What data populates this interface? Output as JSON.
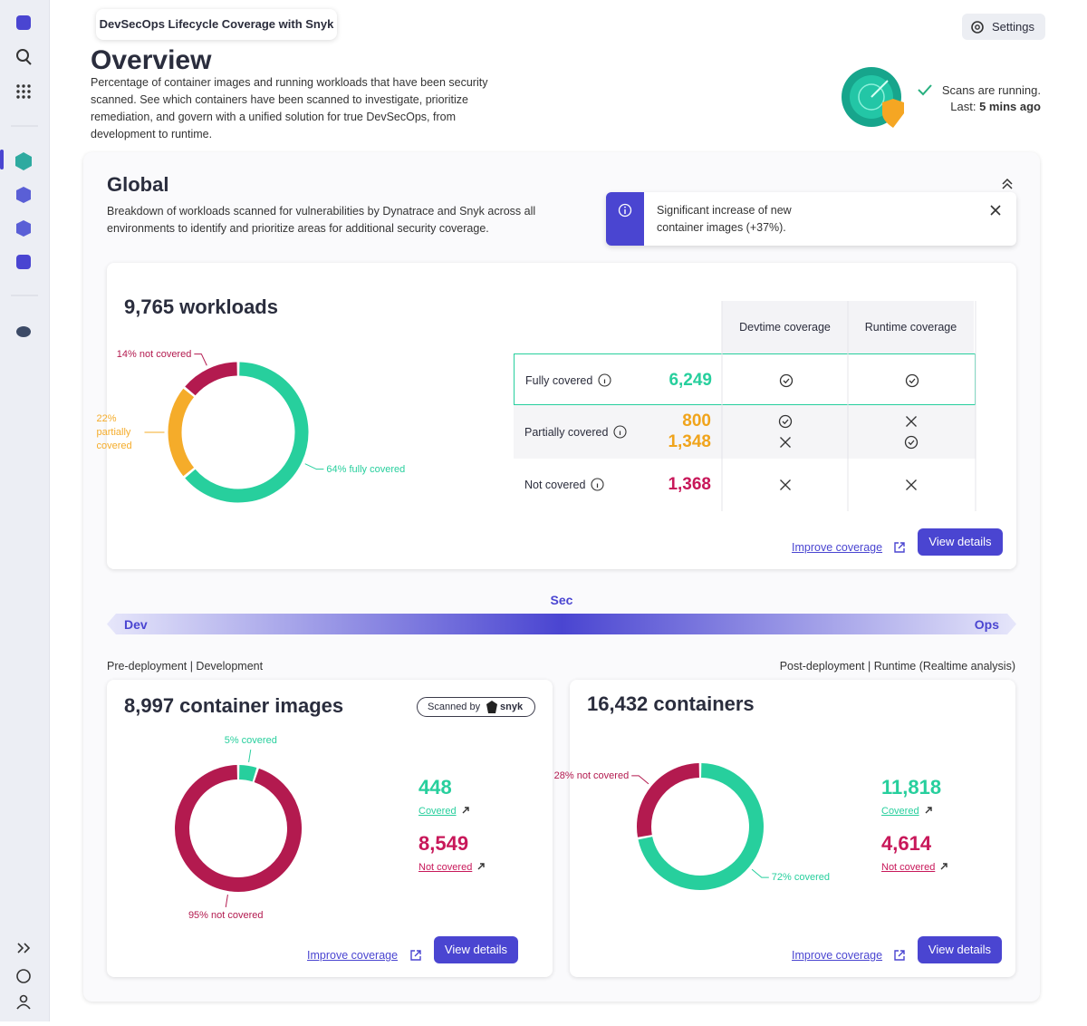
{
  "app_title": "DevSecOps Lifecycle Coverage with Snyk",
  "settings_label": "Settings",
  "header": {
    "title": "Overview",
    "description": "Percentage of container images and running workloads that have been security scanned. See which containers have been scanned to investigate, prioritize remediation, and govern with a unified solution for true DevSecOps, from development to runtime.",
    "status": "Scans are running.",
    "last_label": "Last:",
    "last_value": "5 mins ago"
  },
  "global": {
    "title": "Global",
    "description": "Breakdown of workloads scanned for vulnerabilities by Dynatrace and Snyk across all environments to identify and prioritize areas for additional security coverage.",
    "alert": "Significant increase of new container images (+37%)."
  },
  "workloads": {
    "title": "9,765 workloads",
    "donut": [
      {
        "value": 64,
        "label": "64% fully covered",
        "color": "#27cf9d"
      },
      {
        "value": 22,
        "label": "22% partially covered",
        "color": "#f5ac2a"
      },
      {
        "value": 14,
        "label": "14% not covered",
        "color": "#b31a4f"
      }
    ],
    "table": {
      "columns": [
        "Devtime coverage",
        "Runtime coverage"
      ],
      "rows": [
        {
          "label": "Fully covered",
          "color": "#27cf9d",
          "items": [
            {
              "count": "6,249",
              "devtime": true,
              "runtime": true
            }
          ]
        },
        {
          "label": "Partially covered",
          "color": "#f0a41c",
          "items": [
            {
              "count": "800",
              "devtime": true,
              "runtime": false
            },
            {
              "count": "1,348",
              "devtime": false,
              "runtime": true
            }
          ]
        },
        {
          "label": "Not covered",
          "color": "#c8185a",
          "items": [
            {
              "count": "1,368",
              "devtime": false,
              "runtime": false
            }
          ]
        }
      ]
    },
    "improve_link": "Improve coverage",
    "button": "View details"
  },
  "lifecycle": {
    "center": "Sec",
    "left": "Dev",
    "right": "Ops",
    "pre_label": "Pre-deployment | Development",
    "post_label": "Post-deployment | Runtime (Realtime analysis)"
  },
  "images": {
    "title": "8,997 container images",
    "badge": {
      "prefix": "Scanned by",
      "brand": "snyk"
    },
    "donut": [
      {
        "value": 5,
        "label": "5% covered",
        "color": "#27cf9d"
      },
      {
        "value": 95,
        "label": "95% not covered",
        "color": "#b31a4f"
      }
    ],
    "stats": [
      {
        "value": "448",
        "label": "Covered",
        "color": "#27cf9d"
      },
      {
        "value": "8,549",
        "label": "Not covered",
        "color": "#c8185a"
      }
    ],
    "improve_link": "Improve coverage",
    "button": "View details"
  },
  "containers": {
    "title": "16,432 containers",
    "donut": [
      {
        "value": 72,
        "label": "72% covered",
        "color": "#27cf9d"
      },
      {
        "value": 28,
        "label": "28% not covered",
        "color": "#b31a4f"
      }
    ],
    "stats": [
      {
        "value": "11,818",
        "label": "Covered",
        "color": "#27cf9d"
      },
      {
        "value": "4,614",
        "label": "Not covered",
        "color": "#c8185a"
      }
    ],
    "improve_link": "Improve coverage",
    "button": "View details"
  }
}
